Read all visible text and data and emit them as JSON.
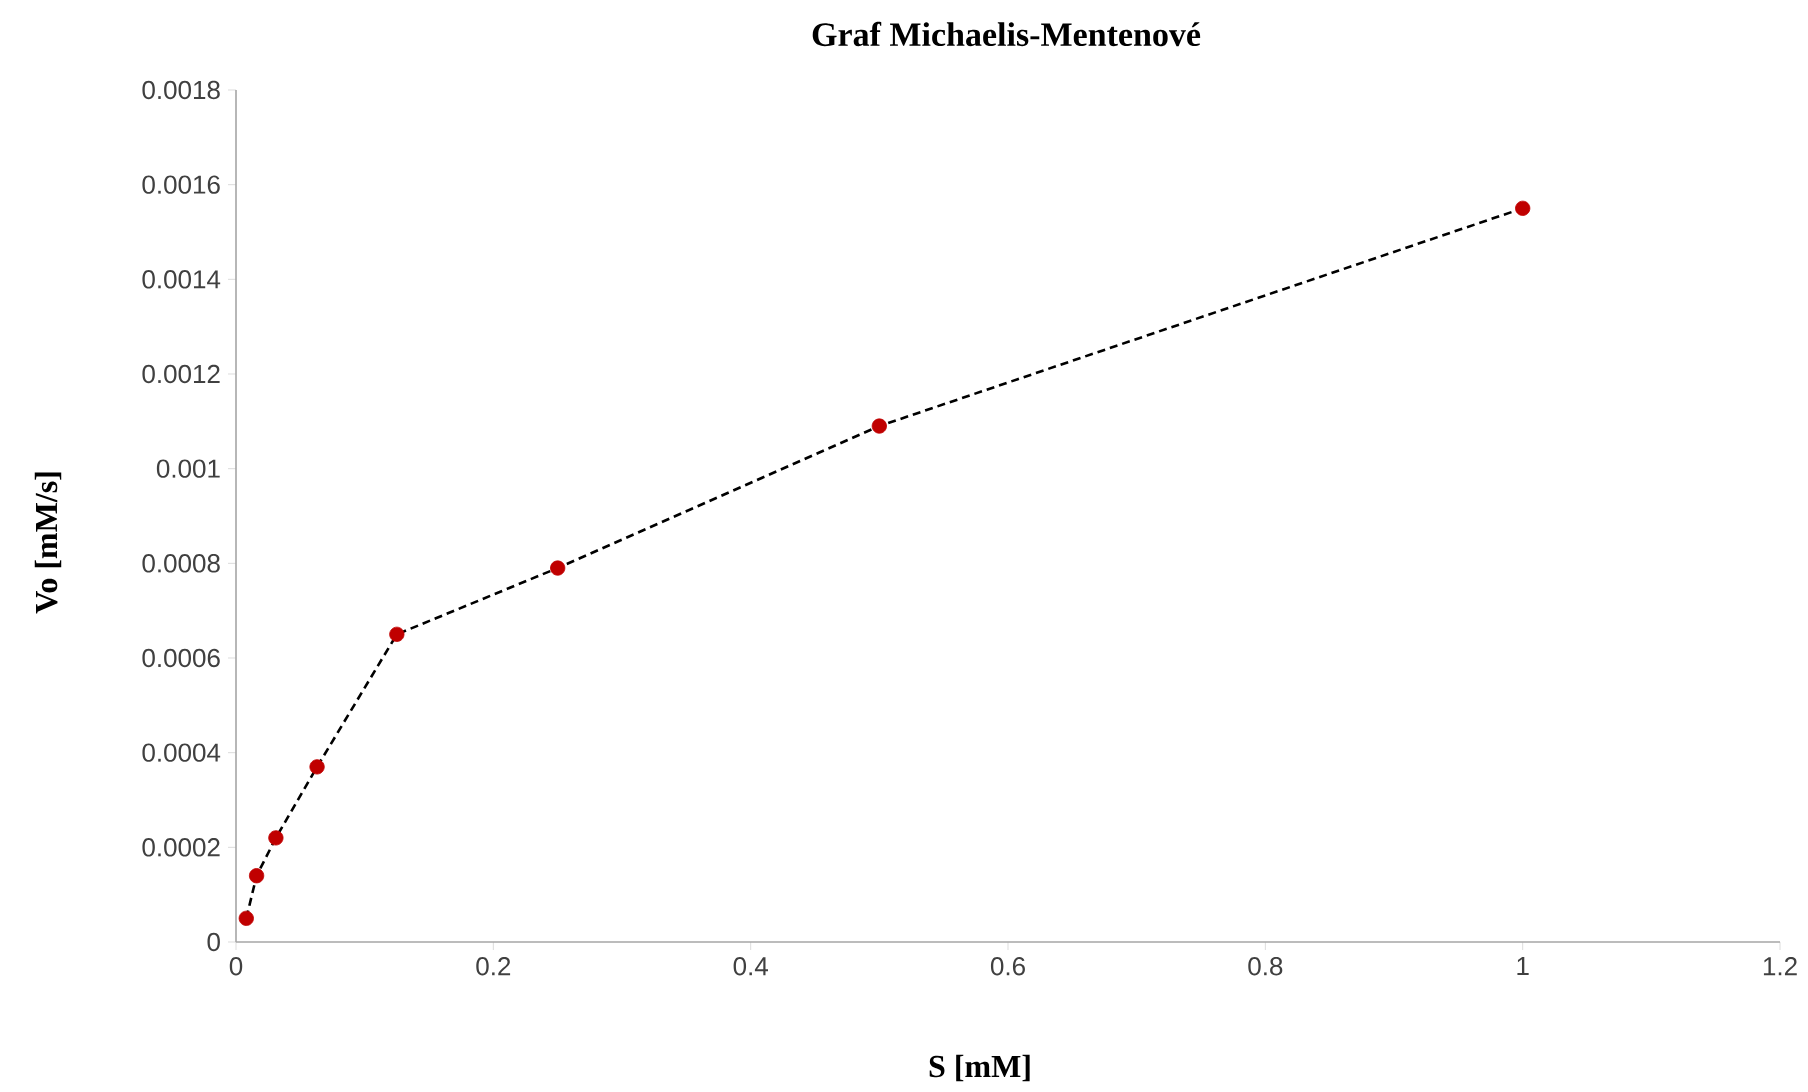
{
  "chart_data": {
    "type": "line",
    "title": "Graf Michaelis-Mentenové",
    "xlabel": "S [mM]",
    "ylabel": "Vo  [mM/s]",
    "x": [
      0.008,
      0.016,
      0.031,
      0.063,
      0.125,
      0.25,
      0.5,
      1
    ],
    "series": [
      {
        "color": "#000000",
        "line_style": "dashed",
        "marker": "none",
        "values": [
          5e-05,
          0.00014,
          0.00022,
          0.00037,
          0.00065,
          0.00079,
          0.00109,
          0.00155
        ]
      },
      {
        "type": "scatter",
        "color": "#c00000",
        "marker": "circle",
        "values": [
          5e-05,
          0.00014,
          0.00022,
          0.00037,
          0.00065,
          0.00079,
          0.00109,
          0.00155
        ]
      }
    ],
    "xlim": [
      0,
      1.2
    ],
    "ylim": [
      0,
      0.0018
    ],
    "xticks": [
      0,
      0.2,
      0.4,
      0.6,
      0.8,
      1,
      1.2
    ],
    "yticks": [
      0,
      0.0002,
      0.0004,
      0.0006,
      0.0008,
      0.001,
      0.0012,
      0.0014,
      0.0016,
      0.0018
    ],
    "grid": false
  }
}
